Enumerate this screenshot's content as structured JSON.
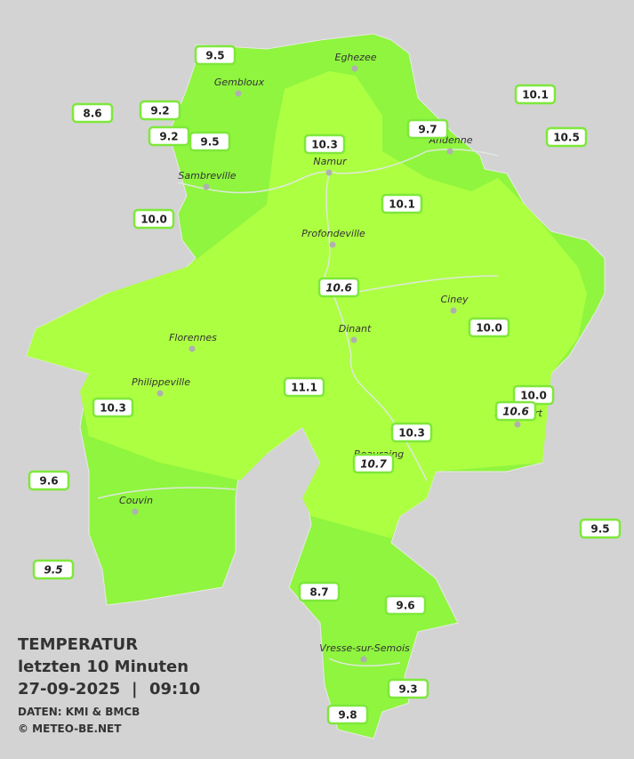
{
  "title": {
    "line1": "TEMPERATUR",
    "line2": "letzten 10 Minuten",
    "date": "27-09-2025",
    "separator": "|",
    "time": "09:10",
    "source": "DATEN: KMI & BMCB",
    "copyright": "© METEO-BE.NET"
  },
  "towns": [
    "Eghezee",
    "Gembloux",
    "Andenne",
    "Namur",
    "Sambreville",
    "Profondeville",
    "Ciney",
    "Dinant",
    "Florennes",
    "Philippeville",
    "Couvin",
    "Vresse-sur-Semois",
    "Beauraing",
    "Rochefort"
  ],
  "stations": [
    "9.5",
    "8.6",
    "9.2",
    "9.2",
    "9.5",
    "10.3",
    "9.7",
    "10.1",
    "10.5",
    "10.0",
    "10.1",
    "10.6",
    "10.0",
    "11.1",
    "10.3",
    "10.0",
    "10.6",
    "10.3",
    "10.7",
    "9.6",
    "9.5",
    "9.5",
    "8.7",
    "9.6",
    "9.3",
    "9.8"
  ]
}
